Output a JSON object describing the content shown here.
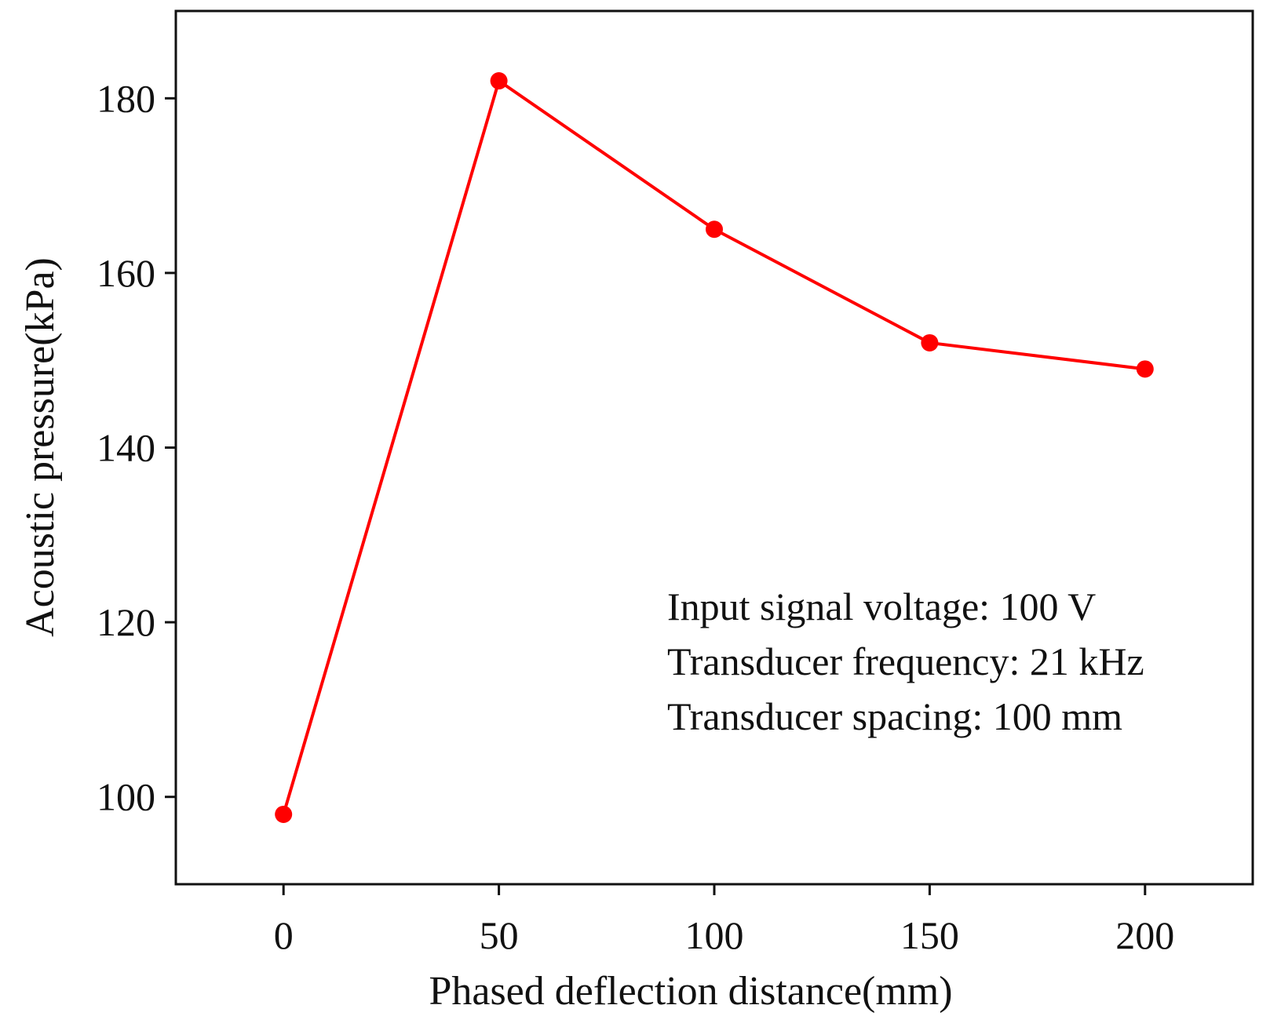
{
  "chart_data": {
    "type": "line",
    "title": "",
    "xlabel": "Phased deflection distance(mm)",
    "ylabel": "Acoustic pressure(kPa)",
    "x": [
      0,
      50,
      100,
      150,
      200
    ],
    "series": [
      {
        "name": "Acoustic pressure",
        "values": [
          98,
          182,
          165,
          152,
          149
        ]
      }
    ],
    "xlim": [
      -25,
      225
    ],
    "ylim": [
      90,
      190
    ],
    "xticks": [
      0,
      50,
      100,
      150,
      200
    ],
    "yticks": [
      100,
      120,
      140,
      160,
      180
    ],
    "grid": false,
    "line_color": "#ff0000",
    "annotations": [
      "Input signal voltage: 100 V",
      "Transducer frequency: 21 kHz",
      "Transducer spacing: 100 mm"
    ]
  }
}
